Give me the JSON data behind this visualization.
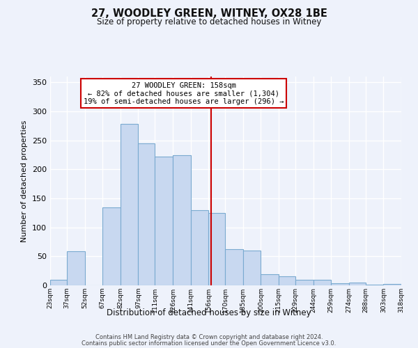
{
  "title": "27, WOODLEY GREEN, WITNEY, OX28 1BE",
  "subtitle": "Size of property relative to detached houses in Witney",
  "xlabel": "Distribution of detached houses by size in Witney",
  "ylabel": "Number of detached properties",
  "bar_color": "#c8d8f0",
  "bar_edgecolor": "#7aaad0",
  "background_color": "#eef2fb",
  "grid_color": "#ffffff",
  "vline_x": 158,
  "vline_color": "#cc0000",
  "annotation_title": "27 WOODLEY GREEN: 158sqm",
  "annotation_line1": "← 82% of detached houses are smaller (1,304)",
  "annotation_line2": "19% of semi-detached houses are larger (296) →",
  "footer1": "Contains HM Land Registry data © Crown copyright and database right 2024.",
  "footer2": "Contains public sector information licensed under the Open Government Licence v3.0.",
  "bin_labels": [
    "23sqm",
    "37sqm",
    "52sqm",
    "67sqm",
    "82sqm",
    "97sqm",
    "111sqm",
    "126sqm",
    "141sqm",
    "156sqm",
    "170sqm",
    "185sqm",
    "200sqm",
    "215sqm",
    "229sqm",
    "244sqm",
    "259sqm",
    "274sqm",
    "288sqm",
    "303sqm",
    "318sqm"
  ],
  "bin_edges": [
    23,
    37,
    52,
    67,
    82,
    97,
    111,
    126,
    141,
    156,
    170,
    185,
    200,
    215,
    229,
    244,
    259,
    274,
    288,
    303,
    318
  ],
  "bar_heights": [
    10,
    59,
    0,
    135,
    278,
    245,
    222,
    225,
    130,
    125,
    62,
    60,
    19,
    16,
    10,
    10,
    4,
    5,
    1,
    3
  ],
  "ylim": [
    0,
    360
  ],
  "yticks": [
    0,
    50,
    100,
    150,
    200,
    250,
    300,
    350
  ]
}
